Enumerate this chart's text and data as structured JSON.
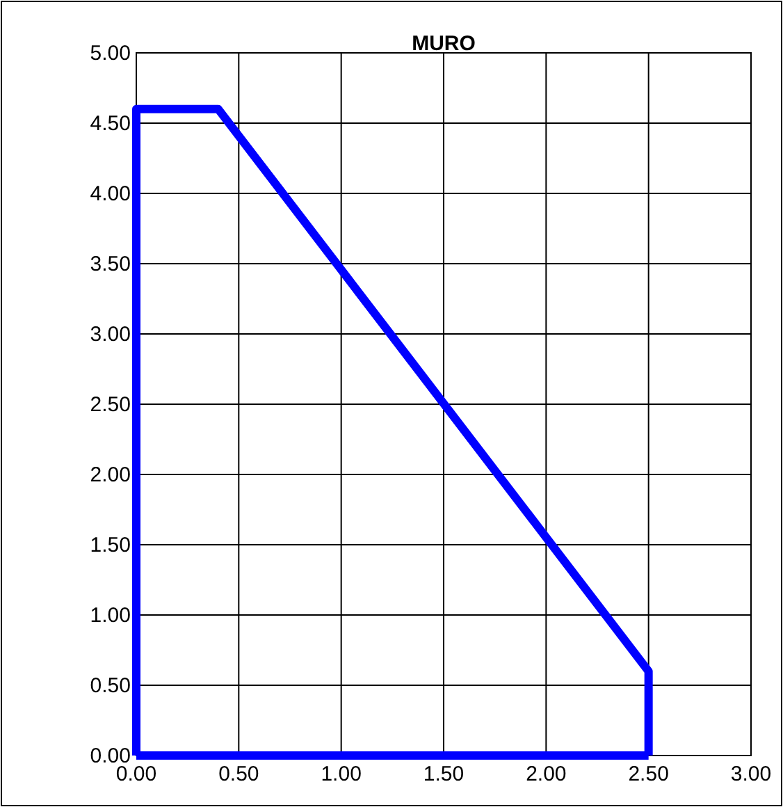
{
  "chart_data": {
    "type": "line",
    "title": "MURO",
    "series": [
      {
        "color": "#0000ff",
        "x": [
          0,
          0,
          0.4,
          2.5,
          2.5
        ],
        "values": [
          0,
          4.6,
          4.6,
          0.6,
          0
        ]
      },
      {
        "color": "#0000ff",
        "x": [
          0,
          2.5
        ],
        "values": [
          0,
          0
        ]
      }
    ],
    "xlim": [
      0,
      3
    ],
    "xticks": [
      {
        "value": 0,
        "label": "0.00"
      },
      {
        "value": 0.5,
        "label": "0.50"
      },
      {
        "value": 1,
        "label": "1.00"
      },
      {
        "value": 1.5,
        "label": "1.50"
      },
      {
        "value": 2,
        "label": "2.00"
      },
      {
        "value": 2.5,
        "label": "2.50"
      },
      {
        "value": 3,
        "label": "3.00"
      }
    ],
    "ylim": [
      0,
      5
    ],
    "yticks": [
      {
        "value": 0,
        "label": "0.00"
      },
      {
        "value": 0.5,
        "label": "0.50"
      },
      {
        "value": 1,
        "label": "1.00"
      },
      {
        "value": 1.5,
        "label": "1.50"
      },
      {
        "value": 2,
        "label": "2.00"
      },
      {
        "value": 2.5,
        "label": "2.50"
      },
      {
        "value": 3,
        "label": "3.00"
      },
      {
        "value": 3.5,
        "label": "3.50"
      },
      {
        "value": 4,
        "label": "4.00"
      },
      {
        "value": 4.5,
        "label": "4.50"
      },
      {
        "value": 5,
        "label": "5.00"
      }
    ],
    "grid": true,
    "line_style": "solid",
    "marker": "none"
  }
}
